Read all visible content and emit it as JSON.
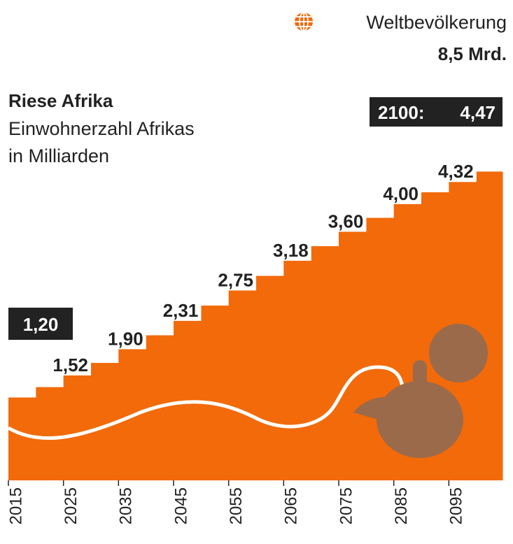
{
  "chart_data": {
    "type": "step",
    "title": "Riese Afrika",
    "subtitle": [
      "Einwohnerzahl Afrikas",
      "in Milliarden"
    ],
    "header": {
      "label": "Weltbevölkerung",
      "value": "8,5 Mrd."
    },
    "annotation": "2100:",
    "x": [
      2015,
      2020,
      2025,
      2030,
      2035,
      2040,
      2045,
      2050,
      2055,
      2060,
      2065,
      2070,
      2075,
      2080,
      2085,
      2090,
      2095,
      2100
    ],
    "values": [
      1.2,
      1.35,
      1.52,
      1.7,
      1.9,
      2.1,
      2.31,
      2.53,
      2.75,
      2.96,
      3.18,
      3.39,
      3.6,
      3.8,
      4.0,
      4.17,
      4.32,
      4.47
    ],
    "value_labels": [
      "1,20",
      null,
      "1,52",
      null,
      "1,90",
      null,
      "2,31",
      null,
      "2,75",
      null,
      "3,18",
      null,
      "3,60",
      null,
      "4,00",
      null,
      "4,32",
      "4,47"
    ],
    "xlim": [
      2015,
      2105
    ],
    "ylim": [
      0,
      5
    ],
    "xticks": [
      2015,
      2025,
      2035,
      2045,
      2055,
      2065,
      2075,
      2085,
      2095
    ],
    "color": "#f26a0a"
  }
}
